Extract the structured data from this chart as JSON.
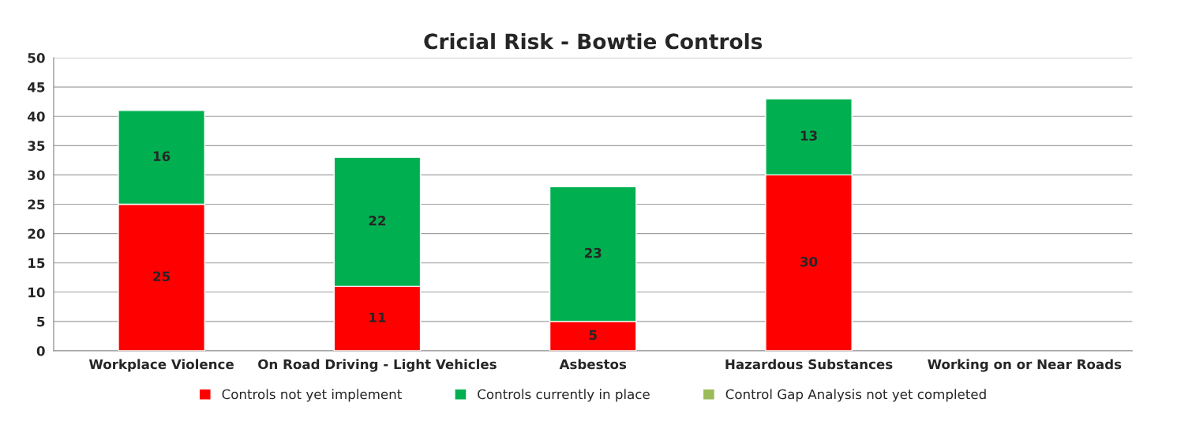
{
  "chart_data": {
    "type": "bar",
    "title": "Cricial Risk - Bowtie Controls",
    "categories": [
      "Workplace Violence",
      "On Road Driving - Light Vehicles",
      "Asbestos",
      "Hazardous Substances",
      "Working on or Near Roads"
    ],
    "series": [
      {
        "name": "Controls not yet implement",
        "color": "#ff0000",
        "values": [
          25,
          11,
          5,
          30,
          null
        ]
      },
      {
        "name": "Controls currently in place",
        "color": "#00b050",
        "values": [
          16,
          22,
          23,
          13,
          null
        ]
      },
      {
        "name": "Control Gap Analysis not yet completed",
        "color": "#9bbb59",
        "values": [
          null,
          null,
          null,
          null,
          null
        ]
      }
    ],
    "stacked": true,
    "data_labels": true,
    "ylim": [
      0,
      50
    ],
    "yticks": [
      0,
      5,
      10,
      15,
      20,
      25,
      30,
      35,
      40,
      45,
      50
    ],
    "grid": "y",
    "legend": "bottom"
  }
}
